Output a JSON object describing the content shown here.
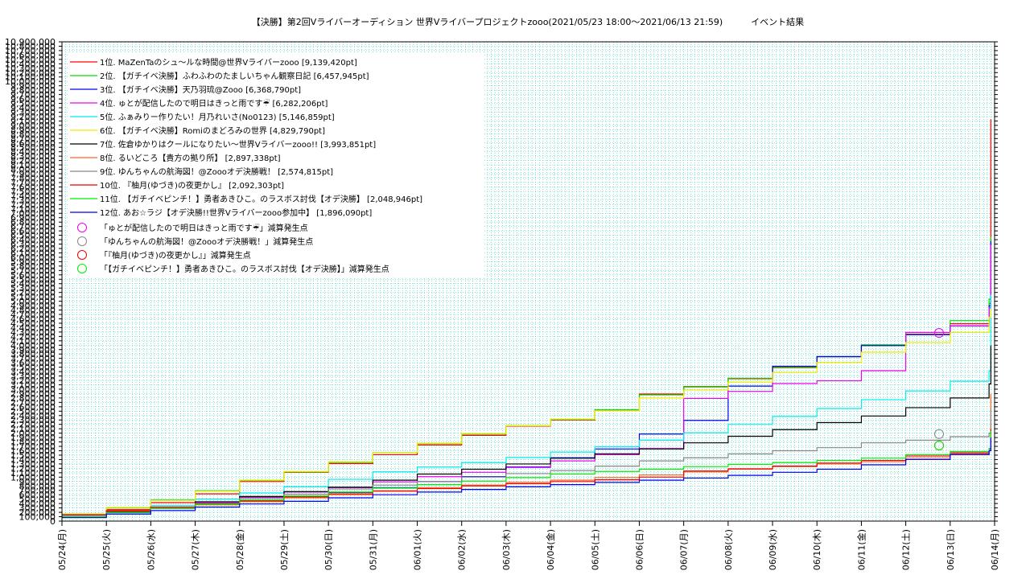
{
  "chart_data": {
    "type": "line",
    "title": "【決勝】第2回Vライバーオーディション 世界Vライバープロジェクトzooo(2021/05/23 18:00～2021/06/13 21:59)          イベント結果",
    "xlabel": "",
    "ylabel": "",
    "grid": true,
    "legend_position": "top-left",
    "ylim": [
      0,
      10900000
    ],
    "x_categories": [
      "05/24(月)",
      "05/25(火)",
      "05/26(水)",
      "05/27(木)",
      "05/28(金)",
      "05/29(土)",
      "05/30(日)",
      "05/31(月)",
      "06/01(火)",
      "06/02(水)",
      "06/03(木)",
      "06/04(金)",
      "06/05(土)",
      "06/06(日)",
      "06/07(月)",
      "06/08(火)",
      "06/09(水)",
      "06/10(木)",
      "06/11(金)",
      "06/12(土)",
      "06/13(日)",
      "06/14(月)"
    ],
    "y_ticks": [
      "0",
      "100,000",
      "200,000",
      "300,000",
      "400,000",
      "500,000",
      "600,000",
      "700,000",
      "800,000",
      "900,000",
      "1,000,000",
      "1,100,000",
      "1,200,000",
      "1,300,000",
      "1,400,000",
      "1,500,000",
      "1,600,000",
      "1,700,000",
      "1,800,000",
      "1,900,000",
      "2,000,000",
      "2,100,000",
      "2,200,000",
      "2,300,000",
      "2,400,000",
      "2,500,000",
      "2,600,000",
      "2,700,000",
      "2,800,000",
      "2,900,000",
      "3,000,000",
      "3,100,000",
      "3,200,000",
      "3,300,000",
      "3,400,000",
      "3,500,000",
      "3,600,000",
      "3,700,000",
      "3,800,000",
      "3,900,000",
      "4,000,000",
      "4,100,000",
      "4,200,000",
      "4,300,000",
      "4,400,000",
      "4,500,000",
      "4,600,000",
      "4,700,000",
      "4,800,000",
      "4,900,000",
      "5,000,000",
      "5,100,000",
      "5,200,000",
      "5,300,000",
      "5,400,000",
      "5,500,000",
      "5,600,000",
      "5,700,000",
      "5,800,000",
      "5,900,000",
      "6,000,000",
      "6,100,000",
      "6,200,000",
      "6,300,000",
      "6,400,000",
      "6,500,000",
      "6,600,000",
      "6,700,000",
      "6,800,000",
      "6,900,000",
      "7,000,000",
      "7,100,000",
      "7,200,000",
      "7,300,000",
      "7,400,000",
      "7,500,000",
      "7,600,000",
      "7,700,000",
      "7,800,000",
      "7,900,000",
      "8,000,000",
      "8,100,000",
      "8,200,000",
      "8,300,000",
      "8,400,000",
      "8,500,000",
      "8,600,000",
      "8,700,000",
      "8,800,000",
      "8,900,000",
      "9,000,000",
      "9,100,000",
      "9,200,000",
      "9,300,000",
      "9,400,000",
      "9,500,000",
      "9,600,000",
      "9,700,000",
      "9,800,000",
      "9,900,000",
      "10,000,000",
      "10,100,000",
      "10,200,000",
      "10,300,000",
      "10,400,000",
      "10,500,000",
      "10,600,000",
      "10,700,000",
      "10,800,000",
      "10,900,000"
    ],
    "series": [
      {
        "name": "1位. MaZenTaのシュ～ルな時間@世界Vライバーzooo [9,139,420pt]",
        "color": "#ff0000",
        "x": [
          "05/24(月)",
          "05/25(火)",
          "05/26(水)",
          "05/27(木)",
          "05/28(金)",
          "05/29(土)",
          "05/30(日)",
          "05/31(月)",
          "06/01(火)",
          "06/02(水)",
          "06/03(木)",
          "06/04(金)",
          "06/05(土)",
          "06/06(日)",
          "06/07(月)",
          "06/08(火)",
          "06/09(水)",
          "06/10(木)",
          "06/11(金)",
          "06/12(土)",
          "06/13(日)",
          "06/13(日) 21:00",
          "06/13(日) 21:59"
        ],
        "y": [
          150000,
          260000,
          420000,
          620000,
          900000,
          1110000,
          1310000,
          1510000,
          1730000,
          1950000,
          2160000,
          2300000,
          2520000,
          2890000,
          3060000,
          3240000,
          3490000,
          3740000,
          4000000,
          4250000,
          4490000,
          4950000,
          9139420
        ]
      },
      {
        "name": "2位. 【ガチイベ決勝】ふわふわのたましいちゃん観察日記 [6,457,945pt]",
        "color": "#00dd00",
        "x": [
          "05/24(月)",
          "05/25(火)",
          "05/26(水)",
          "05/27(木)",
          "05/28(金)",
          "05/29(土)",
          "05/30(日)",
          "05/31(月)",
          "06/01(火)",
          "06/02(水)",
          "06/03(木)",
          "06/04(金)",
          "06/05(土)",
          "06/06(日)",
          "06/07(月)",
          "06/08(火)",
          "06/09(水)",
          "06/10(木)",
          "06/11(金)",
          "06/12(土)",
          "06/13(日)",
          "06/13(日) 21:00",
          "06/13(日) 21:59"
        ],
        "y": [
          160000,
          300000,
          480000,
          690000,
          920000,
          1120000,
          1340000,
          1560000,
          1760000,
          1980000,
          2170000,
          2310000,
          2530000,
          2870000,
          3050000,
          3250000,
          3500000,
          3740000,
          4010000,
          4290000,
          4560000,
          5050000,
          6457945
        ]
      },
      {
        "name": "3位. 【ガチイベ決勝】天乃羽琉@Zooo [6,368,790pt]",
        "color": "#0000ee",
        "x": [
          "05/24(月)",
          "05/25(火)",
          "05/26(水)",
          "05/27(木)",
          "05/28(金)",
          "05/29(土)",
          "05/30(日)",
          "05/31(月)",
          "06/01(火)",
          "06/02(水)",
          "06/03(木)",
          "06/04(金)",
          "06/05(土)",
          "06/06(日)",
          "06/07(月)",
          "06/08(火)",
          "06/09(水)",
          "06/10(木)",
          "06/11(金)",
          "06/12(土)",
          "06/13(日)",
          "06/13(日) 21:00",
          "06/13(日) 21:59"
        ],
        "y": [
          100000,
          200000,
          290000,
          380000,
          460000,
          560000,
          650000,
          760000,
          900000,
          1010000,
          1230000,
          1440000,
          1640000,
          1980000,
          2290000,
          3070000,
          3520000,
          3740000,
          3990000,
          4240000,
          4440000,
          4900000,
          6368790
        ]
      },
      {
        "name": "4位. ゅとが配信したので明日はきっと雨です☔ [6,282,206pt]",
        "color": "#ee00ee",
        "x": [
          "05/24(月)",
          "05/25(火)",
          "05/26(水)",
          "05/27(木)",
          "05/28(金)",
          "05/29(土)",
          "05/30(日)",
          "05/31(月)",
          "06/01(火)",
          "06/02(水)",
          "06/03(木)",
          "06/04(金)",
          "06/05(土)",
          "06/06(日)",
          "06/07(月)",
          "06/08(火)",
          "06/09(水)",
          "06/10(木)",
          "06/11(金)",
          "06/12(土)",
          "06/13(日)",
          "06/13(日) 21:00",
          "06/13(日) 21:59"
        ],
        "y": [
          100000,
          200000,
          300000,
          420000,
          540000,
          660000,
          760000,
          890000,
          1010000,
          1110000,
          1220000,
          1370000,
          1510000,
          1650000,
          2790000,
          2950000,
          3130000,
          3190000,
          3420000,
          4290000,
          4440000,
          4850000,
          6282206
        ]
      },
      {
        "name": "5位. ふぁみりー作りたい！月乃れいさ(No0123) [5,146,859pt]",
        "color": "#00eeee",
        "x": [
          "05/24(月)",
          "05/25(火)",
          "05/26(水)",
          "05/27(木)",
          "05/28(金)",
          "05/29(土)",
          "05/30(日)",
          "05/31(月)",
          "06/01(火)",
          "06/02(水)",
          "06/03(木)",
          "06/04(金)",
          "06/05(土)",
          "06/06(日)",
          "06/07(月)",
          "06/08(火)",
          "06/09(水)",
          "06/10(木)",
          "06/11(金)",
          "06/12(土)",
          "06/13(日)",
          "06/13(日) 21:00",
          "06/13(日) 21:59"
        ],
        "y": [
          110000,
          230000,
          360000,
          500000,
          640000,
          780000,
          950000,
          1120000,
          1230000,
          1330000,
          1450000,
          1570000,
          1690000,
          1840000,
          2010000,
          2200000,
          2380000,
          2560000,
          2760000,
          2960000,
          3180000,
          3420000,
          5146859
        ]
      },
      {
        "name": "6位. 【ガチイベ決勝】Romiのまどろみの世界 [4,829,790pt]",
        "color": "#eeee00",
        "x": [
          "05/24(月)",
          "05/25(火)",
          "05/26(水)",
          "05/27(木)",
          "05/28(金)",
          "05/29(土)",
          "05/30(日)",
          "05/31(月)",
          "06/01(火)",
          "06/02(水)",
          "06/03(木)",
          "06/04(金)",
          "06/05(土)",
          "06/06(日)",
          "06/07(月)",
          "06/08(火)",
          "06/09(水)",
          "06/10(木)",
          "06/11(金)",
          "06/12(土)",
          "06/13(日)",
          "06/13(日) 21:00",
          "06/13(日) 21:59"
        ],
        "y": [
          160000,
          310000,
          470000,
          680000,
          930000,
          1130000,
          1350000,
          1560000,
          1770000,
          1990000,
          2170000,
          2320000,
          2510000,
          2800000,
          2980000,
          3160000,
          3380000,
          3610000,
          3840000,
          4060000,
          4290000,
          4640000,
          4829790
        ]
      },
      {
        "name": "7位. 佐倉ゆかりはクールになりたい～世界Vライバーzooo!! [3,993,851pt]",
        "color": "#000000",
        "x": [
          "05/24(月)",
          "05/25(火)",
          "05/26(水)",
          "05/27(木)",
          "05/28(金)",
          "05/29(土)",
          "05/30(日)",
          "05/31(月)",
          "06/01(火)",
          "06/02(水)",
          "06/03(木)",
          "06/04(金)",
          "06/05(土)",
          "06/06(日)",
          "06/07(月)",
          "06/08(火)",
          "06/09(水)",
          "06/10(木)",
          "06/11(金)",
          "06/12(土)",
          "06/13(日)",
          "06/13(日) 21:00",
          "06/13(日) 21:59"
        ],
        "y": [
          100000,
          210000,
          320000,
          440000,
          560000,
          670000,
          770000,
          930000,
          1070000,
          1180000,
          1300000,
          1430000,
          1530000,
          1640000,
          1780000,
          1930000,
          2080000,
          2240000,
          2390000,
          2580000,
          2800000,
          3120000,
          3993851
        ]
      },
      {
        "name": "8位. るいどころ【貴方の拠り所】 [2,897,338pt]",
        "color": "#ff6622",
        "x": [
          "05/24(月)",
          "05/25(火)",
          "05/26(水)",
          "05/27(木)",
          "05/28(金)",
          "05/29(土)",
          "05/30(日)",
          "05/31(月)",
          "06/01(火)",
          "06/02(水)",
          "06/03(木)",
          "06/04(金)",
          "06/05(土)",
          "06/06(日)",
          "06/07(月)",
          "06/08(火)",
          "06/09(水)",
          "06/10(木)",
          "06/11(金)",
          "06/12(土)",
          "06/13(日)",
          "06/13(日) 21:00",
          "06/13(日) 21:59"
        ],
        "y": [
          150000,
          230000,
          300000,
          370000,
          440000,
          530000,
          600000,
          690000,
          760000,
          820000,
          880000,
          930000,
          990000,
          1050000,
          1120000,
          1180000,
          1240000,
          1300000,
          1350000,
          1430000,
          1530000,
          1630000,
          2897338
        ]
      },
      {
        "name": "9位. ゆんちゃんの航海図！@Zoooオデ決勝戦！ [2,574,815pt]",
        "color": "#888888",
        "x": [
          "05/24(月)",
          "05/25(火)",
          "05/26(水)",
          "05/27(木)",
          "05/28(金)",
          "05/29(土)",
          "05/30(日)",
          "05/31(月)",
          "06/01(火)",
          "06/02(水)",
          "06/03(木)",
          "06/04(金)",
          "06/05(土)",
          "06/06(日)",
          "06/07(月)",
          "06/08(火)",
          "06/09(水)",
          "06/10(木)",
          "06/11(金)",
          "06/12(土)",
          "06/13(日)",
          "06/13(日) 21:00",
          "06/13(日) 21:59"
        ],
        "y": [
          100000,
          200000,
          300000,
          400000,
          520000,
          610000,
          730000,
          820000,
          900000,
          1000000,
          1080000,
          1150000,
          1250000,
          1370000,
          1440000,
          1530000,
          1600000,
          1670000,
          1780000,
          1840000,
          1920000,
          2000000,
          2574815
        ]
      },
      {
        "name": "10位. 『柚月(ゆづき)の夜更かし』 [2,092,303pt]",
        "color": "#ee0000",
        "x": [
          "05/24(月)",
          "05/25(火)",
          "05/26(水)",
          "05/27(木)",
          "05/28(金)",
          "05/29(土)",
          "05/30(日)",
          "05/31(月)",
          "06/01(火)",
          "06/02(水)",
          "06/03(木)",
          "06/04(金)",
          "06/05(土)",
          "06/06(日)",
          "06/07(月)",
          "06/08(火)",
          "06/09(水)",
          "06/10(木)",
          "06/11(金)",
          "06/12(土)",
          "06/13(日)",
          "06/13(日) 21:00",
          "06/13(日) 21:59"
        ],
        "y": [
          140000,
          240000,
          320000,
          390000,
          460000,
          550000,
          620000,
          680000,
          740000,
          800000,
          850000,
          900000,
          940000,
          1000000,
          1140000,
          1190000,
          1250000,
          1320000,
          1380000,
          1480000,
          1550000,
          1650000,
          2092303
        ]
      },
      {
        "name": "11位. 【ガチイベピンチ！】勇者あきひこ。のラスボス討伐【オデ決勝】 [2,048,946pt]",
        "color": "#00ee00",
        "x": [
          "05/24(月)",
          "05/25(火)",
          "05/26(水)",
          "05/27(木)",
          "05/28(金)",
          "05/29(土)",
          "05/30(日)",
          "05/31(月)",
          "06/01(火)",
          "06/02(水)",
          "06/03(木)",
          "06/04(金)",
          "06/05(土)",
          "06/06(日)",
          "06/07(月)",
          "06/08(火)",
          "06/09(水)",
          "06/10(木)",
          "06/11(金)",
          "06/12(土)",
          "06/13(日)",
          "06/13(日) 21:00",
          "06/13(日) 21:59"
        ],
        "y": [
          100000,
          190000,
          290000,
          380000,
          480000,
          570000,
          660000,
          750000,
          830000,
          910000,
          990000,
          1070000,
          1130000,
          1180000,
          1240000,
          1290000,
          1330000,
          1380000,
          1430000,
          1510000,
          1580000,
          1650000,
          2048946
        ]
      },
      {
        "name": "12位. あお☆ラジ【オデ決勝!!世界Vライバーzooo参加中】 [1,896,090pt]",
        "color": "#0000ee",
        "x": [
          "05/24(月)",
          "05/25(火)",
          "05/26(水)",
          "05/27(木)",
          "05/28(金)",
          "05/29(土)",
          "05/30(日)",
          "05/31(月)",
          "06/01(火)",
          "06/02(水)",
          "06/03(木)",
          "06/04(金)",
          "06/05(土)",
          "06/06(日)",
          "06/07(月)",
          "06/08(火)",
          "06/09(水)",
          "06/10(木)",
          "06/11(金)",
          "06/12(土)",
          "06/13(日)",
          "06/13(日) 21:00",
          "06/13(日) 21:59"
        ],
        "y": [
          80000,
          160000,
          240000,
          320000,
          390000,
          450000,
          530000,
          600000,
          660000,
          720000,
          780000,
          830000,
          880000,
          930000,
          980000,
          1040000,
          1110000,
          1180000,
          1280000,
          1400000,
          1510000,
          1600000,
          1896090
        ]
      }
    ],
    "markers": [
      {
        "name": "「ゅとが配信したので明日はきっと雨です☔」減算発生点",
        "color": "#ee00ee",
        "x": "06/12(土) 18:00",
        "y": 4280000
      },
      {
        "name": "「ゆんちゃんの航海図！@Zoooオデ決勝戦！」減算発生点",
        "color": "#888888",
        "x": "06/12(土) 18:00",
        "y": 1980000
      },
      {
        "name": "「『柚月(ゆづき)の夜更かし』」減算発生点",
        "color": "#ee0000",
        "x": "06/12(土) 18:00",
        "y": 1720000
      },
      {
        "name": "「【ガチイベピンチ！】勇者あきひこ。のラスボス討伐【オデ決勝】」減算発生点",
        "color": "#00ee00",
        "x": "06/12(土) 18:00",
        "y": 1720000
      }
    ]
  }
}
